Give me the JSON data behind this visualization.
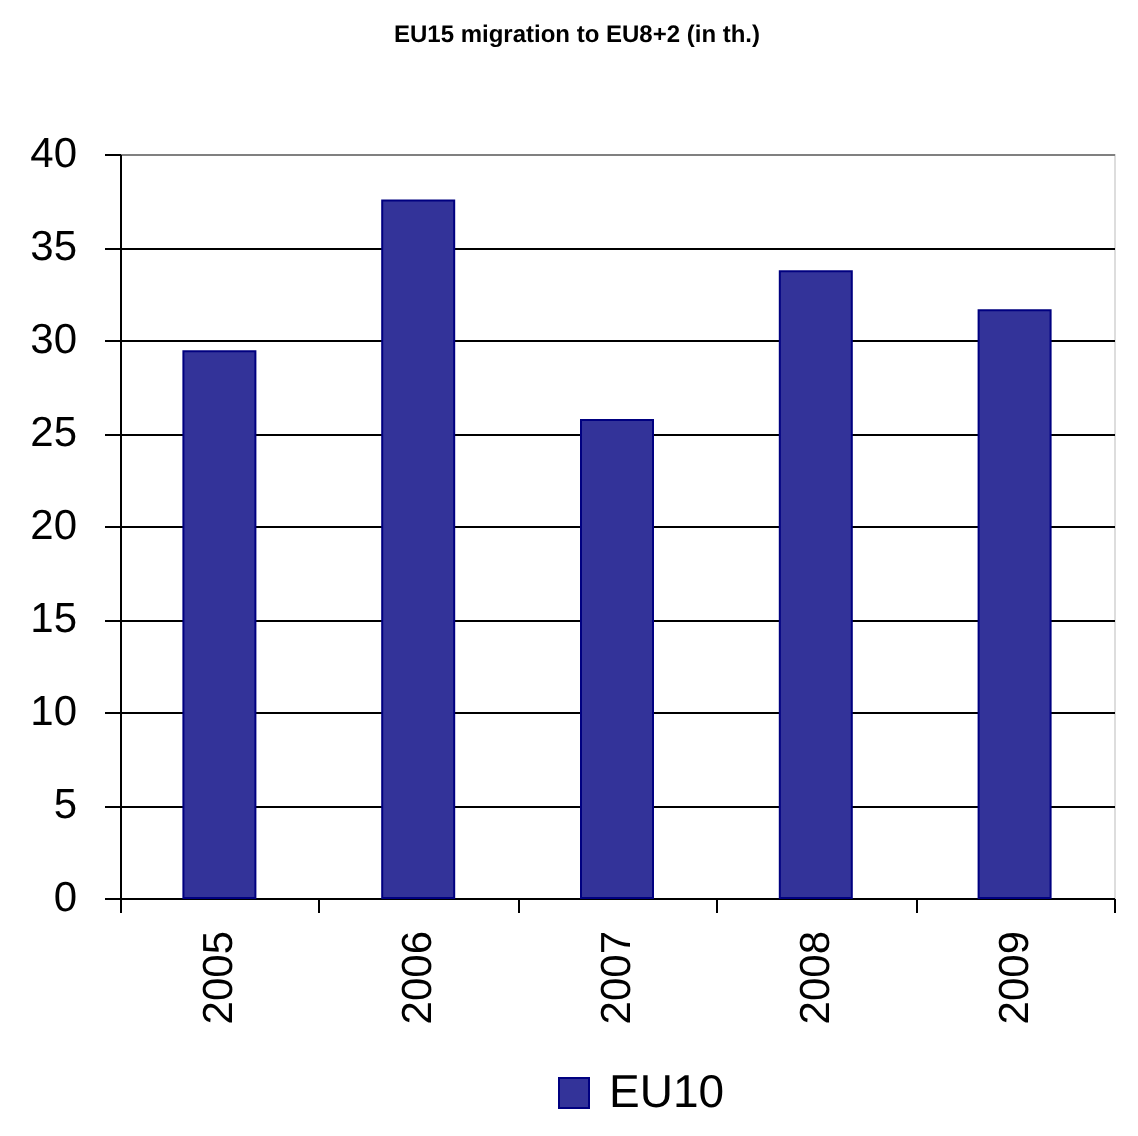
{
  "chart_data": {
    "type": "bar",
    "title": "EU15 migration to EU8+2 (in th.)",
    "categories": [
      "2005",
      "2006",
      "2007",
      "2008",
      "2009"
    ],
    "series": [
      {
        "name": "EU10",
        "color": "#333399",
        "values": [
          29.4,
          37.5,
          25.7,
          33.7,
          31.6
        ]
      }
    ],
    "ylim": [
      0,
      40
    ],
    "yticks": [
      0,
      5,
      10,
      15,
      20,
      25,
      30,
      35,
      40
    ],
    "grid": "y",
    "legend": "bottom"
  }
}
